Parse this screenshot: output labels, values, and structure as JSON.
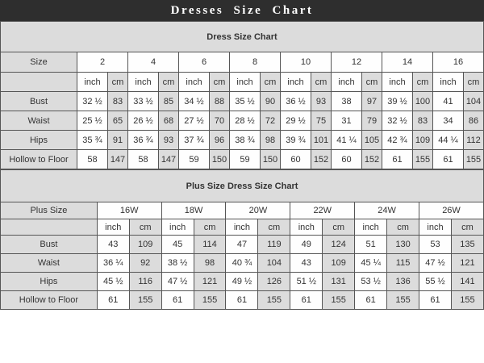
{
  "title_bar": {
    "text": "Dresses Size Chart"
  },
  "units": {
    "inch": "inch",
    "cm": "cm"
  },
  "tables": [
    {
      "title": "Dress Size Chart",
      "label_header": "Size",
      "sizes": [
        "2",
        "4",
        "6",
        "8",
        "10",
        "12",
        "14",
        "16"
      ],
      "rows": [
        {
          "label": "Bust",
          "values": [
            "32 ½",
            "83",
            "33 ½",
            "85",
            "34 ½",
            "88",
            "35 ½",
            "90",
            "36 ½",
            "93",
            "38",
            "97",
            "39 ½",
            "100",
            "41",
            "104"
          ]
        },
        {
          "label": "Waist",
          "values": [
            "25 ½",
            "65",
            "26 ½",
            "68",
            "27 ½",
            "70",
            "28 ½",
            "72",
            "29 ½",
            "75",
            "31",
            "79",
            "32 ½",
            "83",
            "34",
            "86"
          ]
        },
        {
          "label": "Hips",
          "values": [
            "35 ¾",
            "91",
            "36 ¾",
            "93",
            "37 ¾",
            "96",
            "38 ¾",
            "98",
            "39 ¾",
            "101",
            "41 ¼",
            "105",
            "42 ¾",
            "109",
            "44 ¼",
            "112"
          ]
        },
        {
          "label": "Hollow to Floor",
          "values": [
            "58",
            "147",
            "58",
            "147",
            "59",
            "150",
            "59",
            "150",
            "60",
            "152",
            "60",
            "152",
            "61",
            "155",
            "61",
            "155"
          ]
        }
      ]
    },
    {
      "title": "Plus Size Dress Size Chart",
      "label_header": "Plus Size",
      "sizes": [
        "16W",
        "18W",
        "20W",
        "22W",
        "24W",
        "26W"
      ],
      "rows": [
        {
          "label": "Bust",
          "values": [
            "43",
            "109",
            "45",
            "114",
            "47",
            "119",
            "49",
            "124",
            "51",
            "130",
            "53",
            "135"
          ]
        },
        {
          "label": "Waist",
          "values": [
            "36 ¼",
            "92",
            "38 ½",
            "98",
            "40 ¾",
            "104",
            "43",
            "109",
            "45 ¼",
            "115",
            "47 ½",
            "121"
          ]
        },
        {
          "label": "Hips",
          "values": [
            "45 ½",
            "116",
            "47 ½",
            "121",
            "49 ½",
            "126",
            "51 ½",
            "131",
            "53 ½",
            "136",
            "55 ½",
            "141"
          ]
        },
        {
          "label": "Hollow to Floor",
          "values": [
            "61",
            "155",
            "61",
            "155",
            "61",
            "155",
            "61",
            "155",
            "61",
            "155",
            "61",
            "155"
          ]
        }
      ]
    }
  ],
  "colors": {
    "title_bar_bg": "#2e2e2e",
    "title_bar_fg": "#ffffff",
    "shaded_cell_bg": "#dcdcdc",
    "cell_border": "#565656"
  }
}
